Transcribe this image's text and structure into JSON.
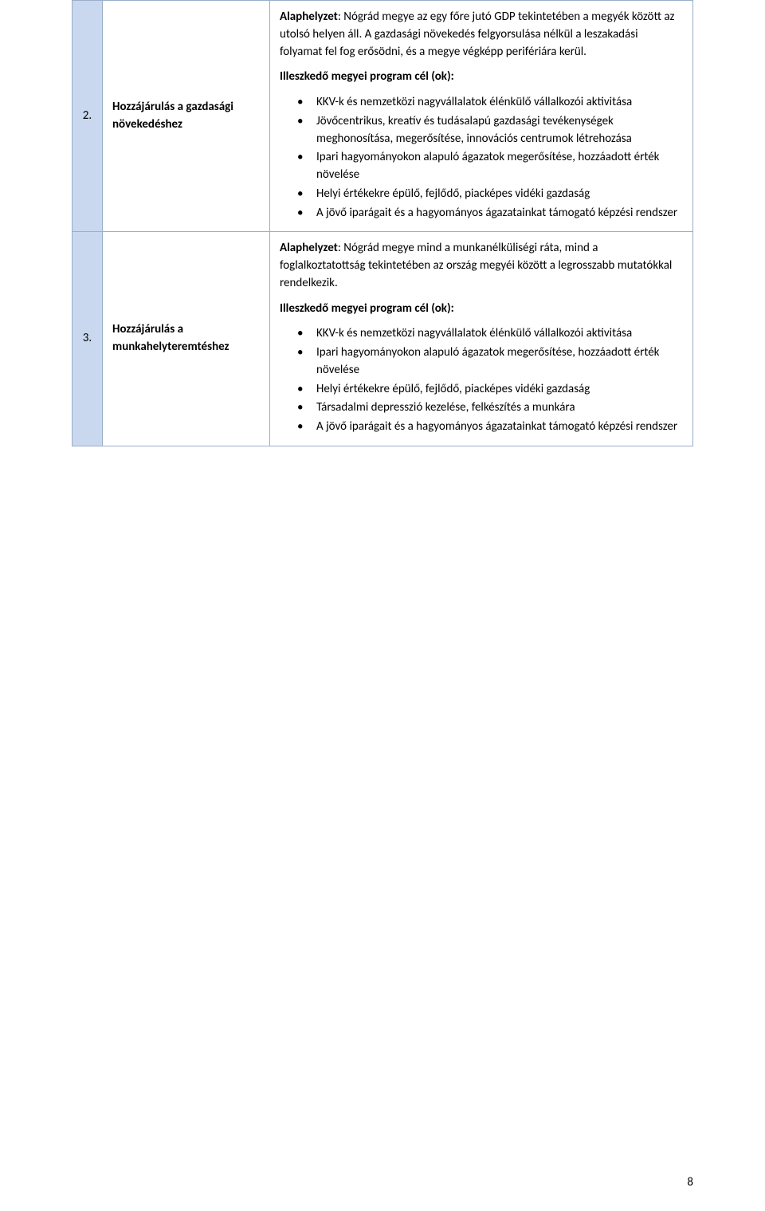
{
  "page_number": "8",
  "colors": {
    "num_bg": "#c9d8ee",
    "border": "#9aaeca",
    "text": "#000000",
    "page_bg": "#ffffff"
  },
  "typography": {
    "base_fontsize_pt": 11,
    "heading_weight": "bold",
    "family": "Calibri"
  },
  "rows": [
    {
      "num": "2.",
      "title": "Hozzájárulás a gazdasági növekedéshez",
      "alap_label": "Alaphelyzet",
      "alap_text": ": Nógrád megye az egy főre jutó GDP tekintetében a megyék között az utolsó helyen áll. A gazdasági növekedés felgyorsulása nélkül a leszakadási folyamat fel fog erősödni, és a megye végképp perifériára kerül.",
      "ill_heading": "Illeszkedő megyei program cél (ok):",
      "bullets": [
        "KKV-k és nemzetközi nagyvállalatok élénkülő vállalkozói aktivitása",
        "Jövőcentrikus, kreatív és tudásalapú gazdasági tevékenységek meghonosítása, megerősítése, innovációs centrumok létrehozása",
        "Ipari hagyományokon alapuló ágazatok megerősítése, hozzáadott érték növelése",
        "Helyi értékekre épülő, fejlődő, piacképes vidéki gazdaság",
        "A jövő iparágait és a hagyományos ágazatainkat támogató képzési rendszer"
      ]
    },
    {
      "num": "3.",
      "title": "Hozzájárulás a munkahelyteremtéshez",
      "alap_label": "Alaphelyzet",
      "alap_text": ": Nógrád megye mind a munkanélküliségi ráta, mind a foglalkoztatottság tekintetében az ország megyéi között a legrosszabb mutatókkal rendelkezik.",
      "ill_heading": "Illeszkedő megyei program cél (ok):",
      "bullets": [
        "KKV-k és nemzetközi nagyvállalatok élénkülő vállalkozói aktivitása",
        "Ipari hagyományokon alapuló ágazatok megerősítése, hozzáadott érték növelése",
        "Helyi értékekre épülő, fejlődő, piacképes vidéki gazdaság",
        "Társadalmi depresszió kezelése, felkészítés a munkára",
        "A jövő iparágait és a hagyományos ágazatainkat támogató képzési rendszer"
      ]
    }
  ]
}
